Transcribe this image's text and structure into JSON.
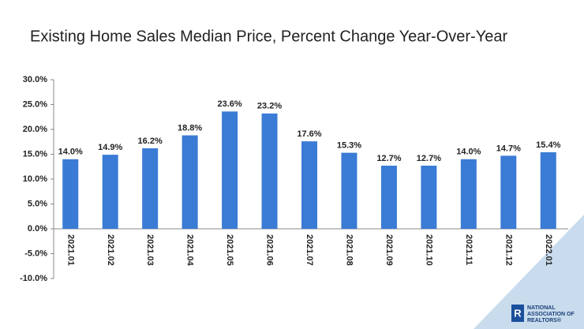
{
  "chart_data": {
    "type": "bar",
    "title": "Existing Home Sales Median Price, Percent Change Year-Over-Year",
    "categories": [
      "2021.01",
      "2021.02",
      "2021.03",
      "2021.04",
      "2021.05",
      "2021.06",
      "2021.07",
      "2021.08",
      "2021.09",
      "2021.10",
      "2021.11",
      "2021.12",
      "2022.01"
    ],
    "values": [
      14.0,
      14.9,
      16.2,
      18.8,
      23.6,
      23.2,
      17.6,
      15.3,
      12.7,
      12.7,
      14.0,
      14.7,
      15.4
    ],
    "value_labels": [
      "14.0%",
      "14.9%",
      "16.2%",
      "18.8%",
      "23.6%",
      "23.2%",
      "17.6%",
      "15.3%",
      "12.7%",
      "12.7%",
      "14.0%",
      "14.7%",
      "15.4%"
    ],
    "color": "#3a7bd5",
    "ylim": [
      -10,
      30
    ],
    "yticks": [
      {
        "value": -10,
        "label": "-10.0%"
      },
      {
        "value": -5,
        "label": "-5.0%"
      },
      {
        "value": 0,
        "label": "0.0%"
      },
      {
        "value": 5,
        "label": "5.0%"
      },
      {
        "value": 10,
        "label": "10.0%"
      },
      {
        "value": 15,
        "label": "15.0%"
      },
      {
        "value": 20,
        "label": "20.0%"
      },
      {
        "value": 25,
        "label": "25.0%"
      },
      {
        "value": 30,
        "label": "30.0%"
      }
    ],
    "grid": false
  },
  "logo": {
    "lines": [
      "NATIONAL",
      "ASSOCIATION OF",
      "REALTORS®"
    ]
  }
}
